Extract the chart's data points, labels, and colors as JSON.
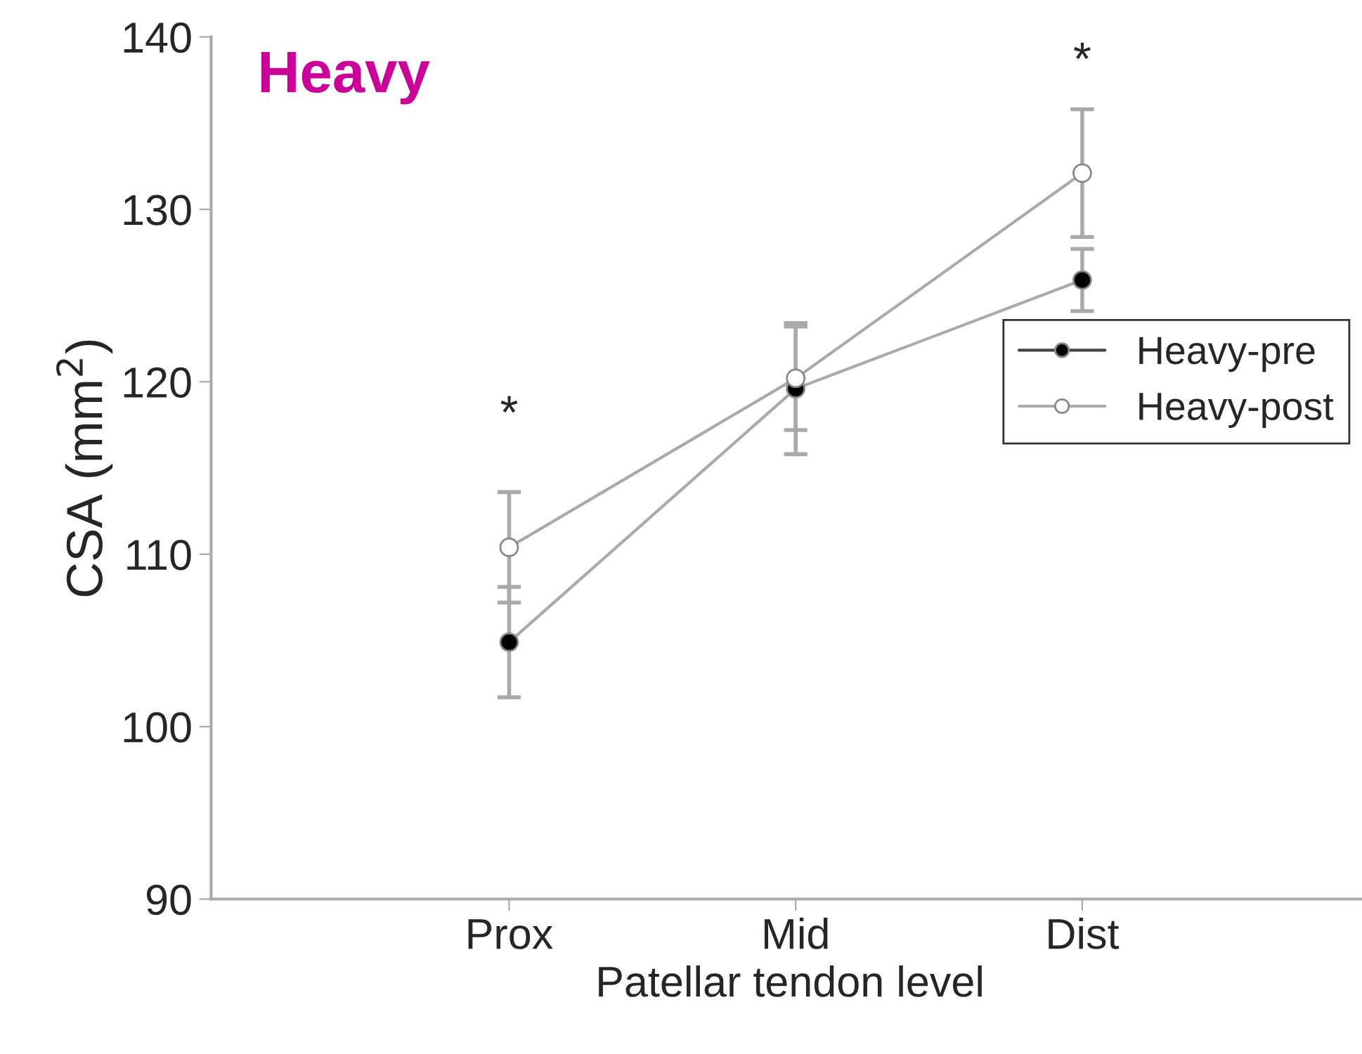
{
  "chart_data": {
    "type": "line",
    "title": "Heavy",
    "xlabel": "Patellar tendon level",
    "ylabel": "CSA (mm$^{2}$)",
    "categories": [
      "Prox",
      "Mid",
      "Dist"
    ],
    "series": [
      {
        "name": "Heavy-pre",
        "color": "#000000",
        "values": [
          104.9,
          119.6,
          125.9
        ],
        "errors": [
          3.2,
          3.8,
          1.8
        ]
      },
      {
        "name": "Heavy-post",
        "color": "#ffffff",
        "values": [
          110.4,
          120.2,
          132.1
        ],
        "errors": [
          3.2,
          3.0,
          3.7
        ]
      }
    ],
    "ylim": [
      90,
      140
    ],
    "yticks": [
      90,
      100,
      110,
      120,
      130,
      140
    ],
    "annotations": [
      "*",
      "*"
    ],
    "marker": "circle",
    "line_style": "solid",
    "grid": false,
    "legend": "right"
  }
}
